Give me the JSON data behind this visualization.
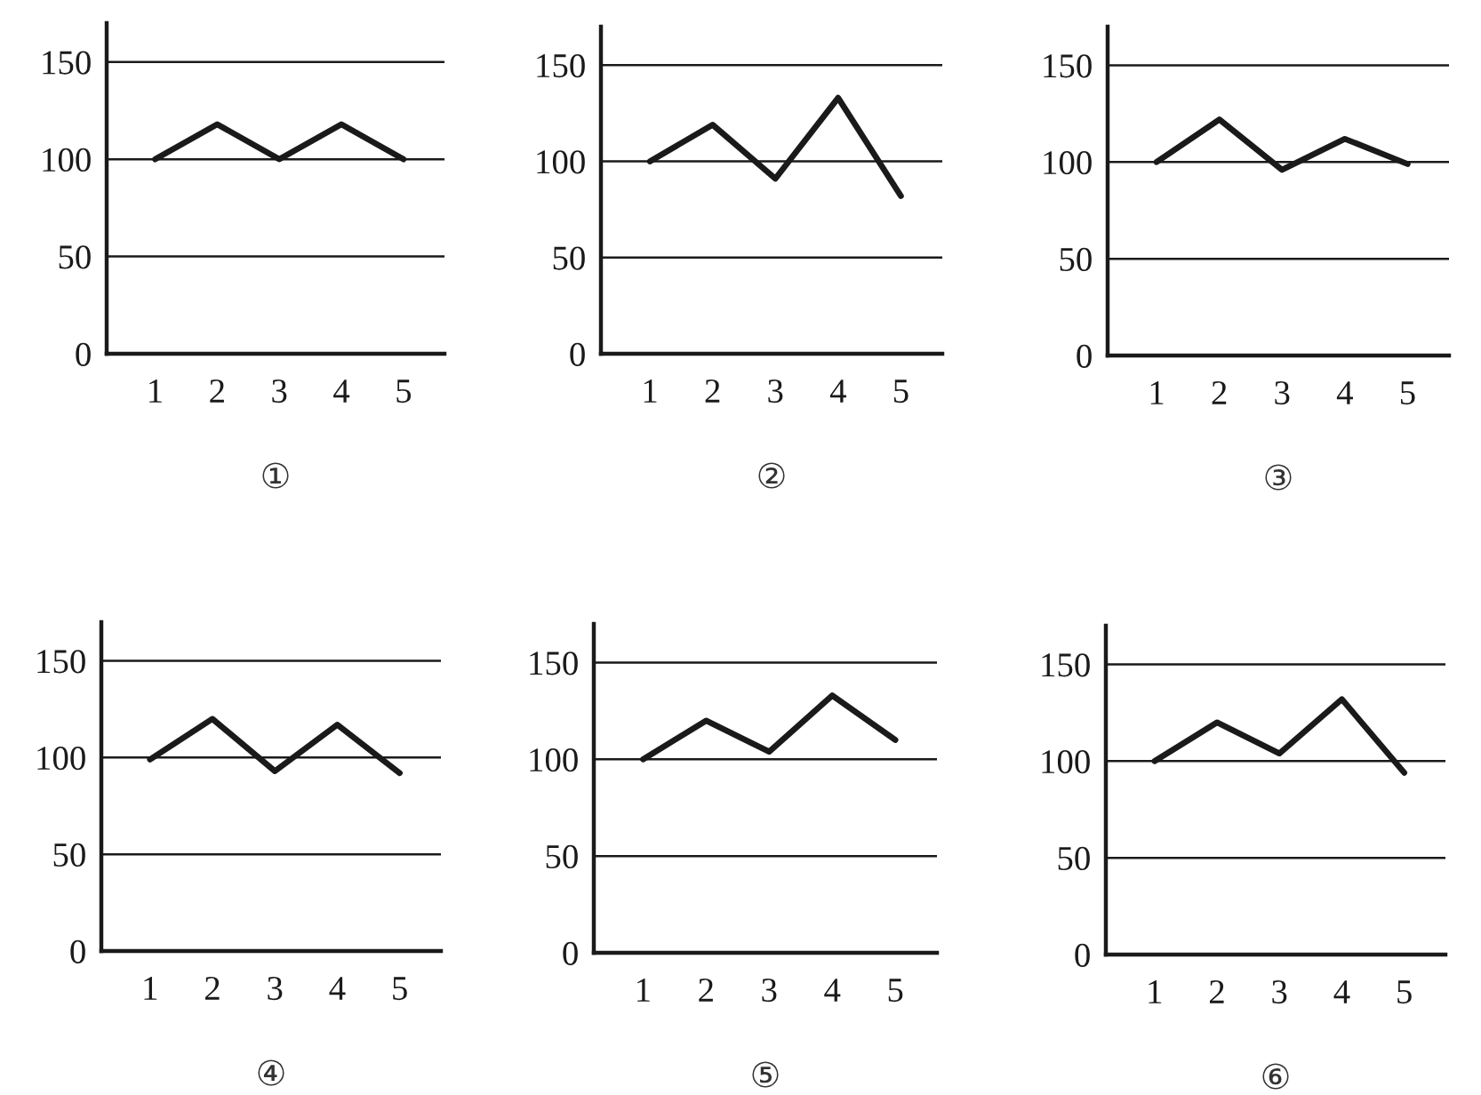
{
  "chart_data": [
    {
      "type": "line",
      "xlabel": "①",
      "categories": [
        "1",
        "2",
        "3",
        "4",
        "5"
      ],
      "series": [
        {
          "color": "#1a1a1a",
          "values": [
            100,
            118,
            100,
            118,
            100
          ]
        }
      ],
      "ylim": [
        0,
        170
      ],
      "yticks": [
        0,
        50,
        100,
        150
      ],
      "grid": "y"
    },
    {
      "type": "line",
      "xlabel": "②",
      "categories": [
        "1",
        "2",
        "3",
        "4",
        "5"
      ],
      "series": [
        {
          "color": "#1a1a1a",
          "values": [
            100,
            119,
            91,
            133,
            82
          ]
        }
      ],
      "ylim": [
        0,
        170
      ],
      "yticks": [
        0,
        50,
        100,
        150
      ],
      "grid": "y"
    },
    {
      "type": "line",
      "xlabel": "③",
      "categories": [
        "1",
        "2",
        "3",
        "4",
        "5"
      ],
      "series": [
        {
          "color": "#1a1a1a",
          "values": [
            100,
            122,
            96,
            112,
            99
          ]
        }
      ],
      "ylim": [
        0,
        170
      ],
      "yticks": [
        0,
        50,
        100,
        150
      ],
      "grid": "y"
    },
    {
      "type": "line",
      "xlabel": "④",
      "categories": [
        "1",
        "2",
        "3",
        "4",
        "5"
      ],
      "series": [
        {
          "color": "#1a1a1a",
          "values": [
            99,
            120,
            93,
            117,
            92
          ]
        }
      ],
      "ylim": [
        0,
        170
      ],
      "yticks": [
        0,
        50,
        100,
        150
      ],
      "grid": "y"
    },
    {
      "type": "line",
      "xlabel": "⑤",
      "categories": [
        "1",
        "2",
        "3",
        "4",
        "5"
      ],
      "series": [
        {
          "color": "#1a1a1a",
          "values": [
            100,
            120,
            104,
            133,
            110
          ]
        }
      ],
      "ylim": [
        0,
        170
      ],
      "yticks": [
        0,
        50,
        100,
        150
      ],
      "grid": "y"
    },
    {
      "type": "line",
      "xlabel": "⑥",
      "categories": [
        "1",
        "2",
        "3",
        "4",
        "5"
      ],
      "series": [
        {
          "color": "#1a1a1a",
          "values": [
            100,
            120,
            104,
            132,
            94
          ]
        }
      ],
      "ylim": [
        0,
        170
      ],
      "yticks": [
        0,
        50,
        100,
        150
      ],
      "grid": "y"
    }
  ]
}
